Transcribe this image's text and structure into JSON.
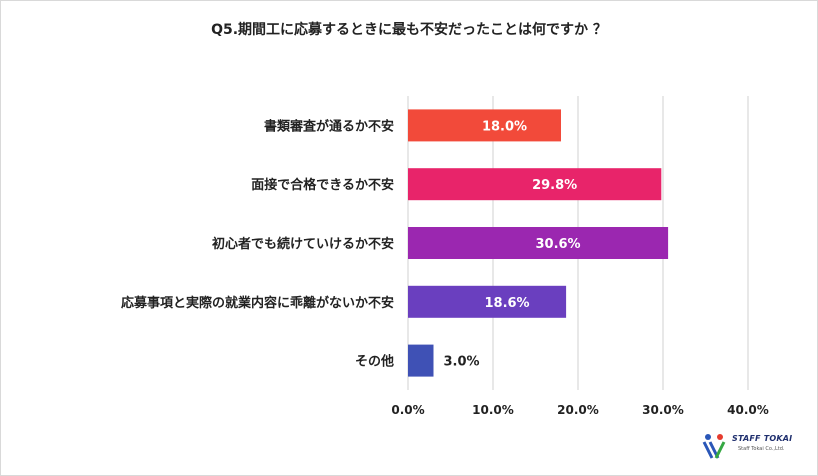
{
  "chart_data": {
    "type": "bar",
    "orientation": "horizontal",
    "title": "Q5.期間工に応募するときに最も不安だったことは何ですか ？",
    "categories": [
      "書類審査が通るか不安",
      "面接で合格できるか不安",
      "初心者でも続けていけるか不安",
      "応募事項と実際の就業内容に乖離がないか不安",
      "その他"
    ],
    "values": [
      18.0,
      29.8,
      30.6,
      18.6,
      3.0
    ],
    "value_labels": [
      "18.0%",
      "29.8%",
      "30.6%",
      "18.6%",
      "3.0%"
    ],
    "bar_colors": [
      "#f24a3a",
      "#e8246a",
      "#9b27b0",
      "#6a3fbf",
      "#3f51b5"
    ],
    "xlim": [
      0,
      40
    ],
    "xticks": [
      "0.0%",
      "10.0%",
      "20.0%",
      "30.0%",
      "40.0%"
    ],
    "grid": "vertical",
    "xlabel": "",
    "ylabel": ""
  },
  "logo": {
    "name": "STAFF TOKAI",
    "subtitle": "Staff Tokai Co.,Ltd."
  }
}
